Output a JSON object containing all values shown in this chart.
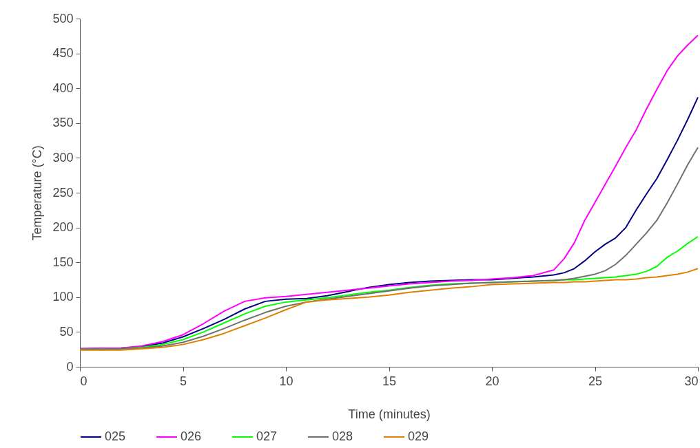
{
  "chart_data": {
    "type": "line",
    "xlabel": "Time (minutes)",
    "ylabel": "Temperature (°C)",
    "xlim": [
      0,
      30
    ],
    "ylim": [
      0,
      500
    ],
    "xticks": [
      0,
      5,
      10,
      15,
      20,
      25,
      30
    ],
    "yticks": [
      0,
      50,
      100,
      150,
      200,
      250,
      300,
      350,
      400,
      450,
      500
    ],
    "grid": false,
    "legend": "bottom",
    "marker": "none",
    "line_style": "solid",
    "x": [
      0,
      2,
      3,
      4,
      5,
      6,
      7,
      8,
      9,
      10,
      11,
      12,
      13,
      14,
      15,
      16,
      17,
      18,
      19,
      20,
      21,
      22,
      23,
      23.5,
      24,
      24.5,
      25,
      25.5,
      26,
      26.5,
      27,
      27.5,
      28,
      28.5,
      29,
      29.5,
      30
    ],
    "series": [
      {
        "name": "025",
        "color": "#000080",
        "values": [
          26,
          27,
          29,
          34,
          43,
          55,
          68,
          83,
          94,
          97,
          98,
          102,
          108,
          114,
          118,
          121,
          123,
          124,
          125,
          125,
          127,
          129,
          132,
          135,
          141,
          152,
          165,
          176,
          185,
          200,
          225,
          248,
          270,
          297,
          325,
          355,
          387
        ]
      },
      {
        "name": "026",
        "color": "#ff00ff",
        "values": [
          26,
          27,
          30,
          36,
          46,
          62,
          80,
          94,
          99,
          101,
          104,
          107,
          110,
          113,
          116,
          119,
          121,
          123,
          124,
          126,
          128,
          131,
          139,
          155,
          178,
          210,
          236,
          262,
          288,
          315,
          340,
          370,
          398,
          425,
          446,
          462,
          476
        ]
      },
      {
        "name": "027",
        "color": "#00ff00",
        "values": [
          25,
          26,
          28,
          32,
          39,
          50,
          63,
          76,
          87,
          93,
          96,
          99,
          103,
          107,
          110,
          114,
          117,
          119,
          120,
          121,
          122,
          123,
          124,
          125,
          125,
          126,
          127,
          128,
          129,
          131,
          133,
          137,
          144,
          157,
          166,
          177,
          187
        ]
      },
      {
        "name": "028",
        "color": "#707070",
        "values": [
          25,
          26,
          27,
          30,
          35,
          44,
          55,
          67,
          78,
          87,
          93,
          97,
          101,
          105,
          109,
          113,
          116,
          118,
          120,
          121,
          122,
          123,
          124,
          125,
          127,
          130,
          133,
          138,
          147,
          160,
          176,
          192,
          210,
          235,
          262,
          290,
          315
        ]
      },
      {
        "name": "029",
        "color": "#e08000",
        "values": [
          24,
          24,
          26,
          28,
          32,
          39,
          48,
          59,
          70,
          82,
          93,
          96,
          98,
          100,
          103,
          107,
          110,
          113,
          115,
          118,
          119,
          120,
          121,
          121,
          122,
          122,
          123,
          124,
          125,
          125,
          126,
          128,
          129,
          131,
          133,
          136,
          141
        ]
      }
    ]
  }
}
